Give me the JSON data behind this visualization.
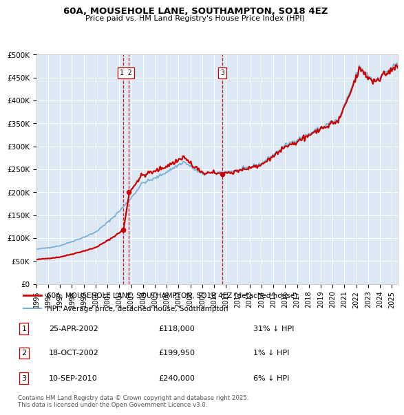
{
  "title": "60A, MOUSEHOLE LANE, SOUTHAMPTON, SO18 4EZ",
  "subtitle": "Price paid vs. HM Land Registry's House Price Index (HPI)",
  "background_color": "#ffffff",
  "plot_bg_color": "#dce9f5",
  "grid_color": "#ffffff",
  "ylim": [
    0,
    500000
  ],
  "yticks": [
    0,
    50000,
    100000,
    150000,
    200000,
    250000,
    300000,
    350000,
    400000,
    450000,
    500000
  ],
  "ytick_labels": [
    "£0",
    "£50K",
    "£100K",
    "£150K",
    "£200K",
    "£250K",
    "£300K",
    "£350K",
    "£400K",
    "£450K",
    "£500K"
  ],
  "sale_dates_year": [
    2002.32,
    2002.8,
    2010.7
  ],
  "sale_prices": [
    118000,
    199950,
    240000
  ],
  "sale_labels": [
    "1",
    "2",
    "3"
  ],
  "vline1_x": 2002.32,
  "vline2_x": 2002.8,
  "vline3_x": 2010.7,
  "legend_items": [
    {
      "label": "60A, MOUSEHOLE LANE, SOUTHAMPTON, SO18 4EZ (detached house)",
      "color": "#cc0000",
      "lw": 2
    },
    {
      "label": "HPI: Average price, detached house, Southampton",
      "color": "#7ab0d4",
      "lw": 1.5
    }
  ],
  "table_rows": [
    {
      "num": "1",
      "date": "25-APR-2002",
      "price": "£118,000",
      "hpi": "31% ↓ HPI"
    },
    {
      "num": "2",
      "date": "18-OCT-2002",
      "price": "£199,950",
      "hpi": "1% ↓ HPI"
    },
    {
      "num": "3",
      "date": "10-SEP-2010",
      "price": "£240,000",
      "hpi": "6% ↓ HPI"
    }
  ],
  "footnote": "Contains HM Land Registry data © Crown copyright and database right 2025.\nThis data is licensed under the Open Government Licence v3.0.",
  "red_line_color": "#cc0000",
  "blue_line_color": "#7ab0d4",
  "vline_color": "#cc0000",
  "xlim_start": 1995,
  "xlim_end": 2025.5
}
